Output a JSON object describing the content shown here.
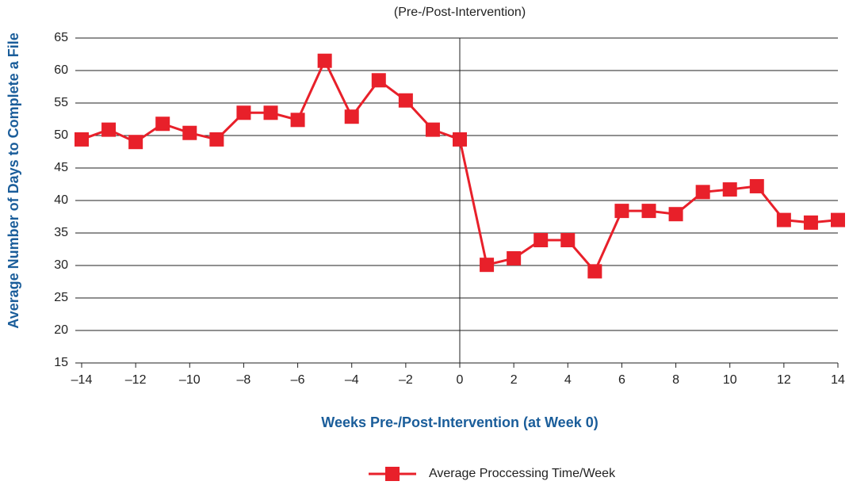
{
  "chart_data": {
    "type": "line",
    "title": "(Pre-/Post-Intervention)",
    "xlabel": "Weeks Pre-/Post-Intervention (at Week 0)",
    "ylabel": "Average Number of Days to Complete a File",
    "x": [
      -14,
      -13,
      -12,
      -11,
      -10,
      -9,
      -8,
      -7,
      -6,
      -5,
      -4,
      -3,
      -2,
      -1,
      0,
      1,
      2,
      3,
      4,
      5,
      6,
      7,
      8,
      9,
      10,
      11,
      12,
      13,
      14
    ],
    "series": [
      {
        "name": "Average Proccessing Time/Week",
        "color": "#e8202a",
        "values": [
          49.4,
          50.9,
          49.0,
          51.8,
          50.4,
          49.4,
          53.5,
          53.5,
          52.4,
          61.5,
          52.9,
          58.5,
          55.4,
          50.9,
          49.4,
          30.1,
          31.1,
          33.9,
          33.9,
          29.1,
          38.4,
          38.4,
          37.9,
          41.3,
          41.7,
          42.2,
          37.0,
          36.6,
          37.0
        ]
      }
    ],
    "xlim": [
      -14,
      14
    ],
    "xticks": [
      {
        "value": -14,
        "label": "–14"
      },
      {
        "value": -12,
        "label": "–12"
      },
      {
        "value": -10,
        "label": "–10"
      },
      {
        "value": -8,
        "label": "–8"
      },
      {
        "value": -6,
        "label": "–6"
      },
      {
        "value": -4,
        "label": "–4"
      },
      {
        "value": -2,
        "label": "–2"
      },
      0,
      2,
      4,
      6,
      8,
      10,
      12,
      14
    ],
    "ylim": [
      15,
      65
    ],
    "yticks": [
      15,
      20,
      25,
      30,
      35,
      40,
      45,
      50,
      55,
      60,
      65
    ],
    "grid": true,
    "legend": "bottom"
  }
}
